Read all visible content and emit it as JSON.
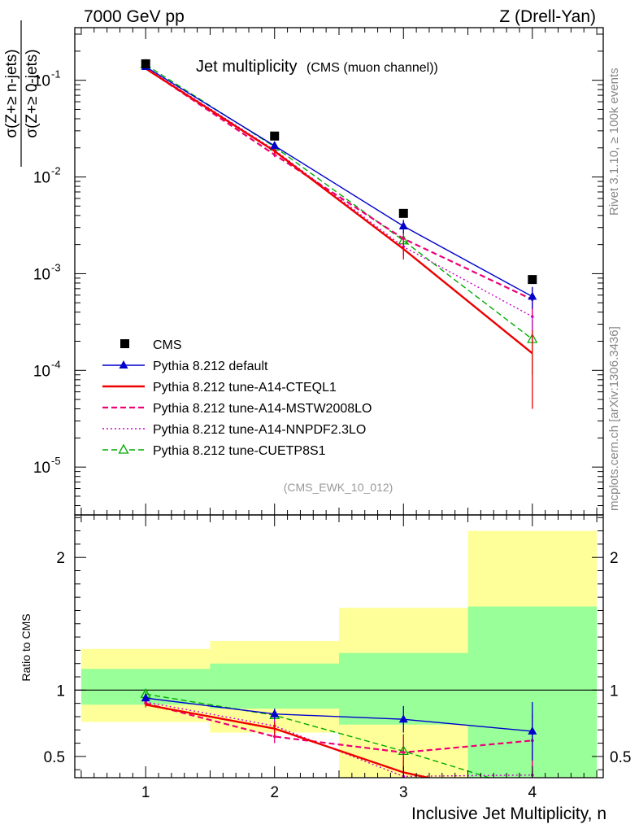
{
  "header": {
    "left": "7000 GeV pp",
    "right": "Z (Drell-Yan)"
  },
  "side": {
    "rivet": "Rivet 3.1.10, ≥ 100k events",
    "mcplots": "mcplots.cern.ch [arXiv:1306.3436]"
  },
  "chart_data": {
    "type": "line",
    "title": "Jet multiplicity",
    "subtitle": "(CMS (muon channel))",
    "analysis_tag": "(CMS_EWK_10_012)",
    "xlabel": "Inclusive Jet Multiplicity, n",
    "ylabel_top": {
      "numerator": "σ(Z+≥ n-jets)",
      "denominator": "σ(Z+≥ 0-jets)"
    },
    "ylabel_bottom": "Ratio to CMS",
    "xlim": [
      0.45,
      4.55
    ],
    "ylim_top": [
      3.2e-06,
      0.35
    ],
    "yscale_top": "log",
    "ylim_bottom": [
      0.34,
      2.32
    ],
    "x_ticks": [
      1,
      2,
      3,
      4
    ],
    "x_tick_labels": [
      "1",
      "2",
      "3",
      "4"
    ],
    "y_ticks_top": [
      {
        "exp": "1",
        "label": "1"
      },
      {
        "exp": "-1",
        "label": "10"
      },
      {
        "exp": "-2",
        "label": "10"
      },
      {
        "exp": "-3",
        "label": "10"
      },
      {
        "exp": "-4",
        "label": "10"
      },
      {
        "exp": "-5",
        "label": "10"
      }
    ],
    "y_ticks_bottom": [
      0.5,
      1,
      2
    ],
    "y_tick_labels_bottom": [
      "0.5",
      "1",
      "2"
    ],
    "legend_position": "bottom-left",
    "x": [
      1,
      2,
      3,
      4
    ],
    "data": {
      "name": "CMS",
      "values": [
        0.148,
        0.0265,
        0.0042,
        0.00087
      ]
    },
    "bands": {
      "bin_edges": [
        [
          0.5,
          1.5
        ],
        [
          1.5,
          2.5
        ],
        [
          2.5,
          3.5
        ],
        [
          3.5,
          4.5
        ]
      ],
      "green": [
        [
          0.89,
          1.16
        ],
        [
          0.86,
          1.2
        ],
        [
          0.74,
          1.28
        ],
        [
          0.34,
          1.63
        ]
      ],
      "yellow": [
        [
          0.76,
          1.31
        ],
        [
          0.68,
          1.37
        ],
        [
          0.34,
          1.62
        ],
        [
          0.34,
          2.2
        ]
      ]
    },
    "series": [
      {
        "name": "Pythia 8.212 default",
        "color": "#0000cc",
        "dash": "solid",
        "marker": "triangle-filled",
        "values": [
          0.138,
          0.021,
          0.0031,
          0.00058
        ],
        "yerr": [
          0.004,
          0.001,
          0.0005,
          0.00015
        ],
        "ratio": [
          0.94,
          0.82,
          0.78,
          0.69
        ],
        "ratio_err": [
          0.02,
          0.04,
          0.1,
          0.22
        ]
      },
      {
        "name": "Pythia 8.212 tune-A14-CTEQL1",
        "color": "#ee0000",
        "dash": "solid",
        "marker": "none",
        "values": [
          0.132,
          0.0185,
          0.0018,
          0.00015
        ],
        "yerr": [
          0.004,
          0.001,
          0.0004,
          0.00011
        ],
        "ratio": [
          0.89,
          0.71,
          0.38,
          0.17
        ],
        "ratio_err": [
          0.02,
          0.05,
          0.12,
          0.14
        ]
      },
      {
        "name": "Pythia 8.212 tune-A14-MSTW2008LO",
        "color": "#ee0077",
        "dash": "dashed",
        "marker": "dot",
        "values": [
          0.133,
          0.017,
          0.0023,
          0.00054
        ],
        "yerr": [
          0.004,
          0.001,
          0.0005,
          0.00018
        ],
        "ratio": [
          0.9,
          0.65,
          0.53,
          0.62
        ],
        "ratio_err": [
          0.02,
          0.05,
          0.13,
          0.2
        ]
      },
      {
        "name": "Pythia 8.212 tune-A14-NNPDF2.3LO",
        "color": "#cc00cc",
        "dash": "dotted",
        "marker": "dot",
        "values": [
          0.135,
          0.019,
          0.0019,
          0.00036
        ],
        "yerr": [
          0.004,
          0.001,
          0.0004,
          0.00016
        ],
        "ratio": [
          0.91,
          0.73,
          0.35,
          0.36
        ],
        "ratio_err": [
          0.02,
          0.05,
          0.11,
          0.18
        ]
      },
      {
        "name": "Pythia 8.212 tune-CUETP8S1",
        "color": "#00aa00",
        "dash": "dashed",
        "marker": "triangle-open",
        "values": [
          0.145,
          0.0205,
          0.0022,
          0.00021
        ],
        "yerr": [
          0.004,
          0.001,
          0.0005,
          0.00012
        ],
        "ratio": [
          0.97,
          0.81,
          0.54,
          0.24
        ],
        "ratio_err": [
          0.02,
          0.05,
          0.13,
          0.16
        ]
      }
    ]
  }
}
